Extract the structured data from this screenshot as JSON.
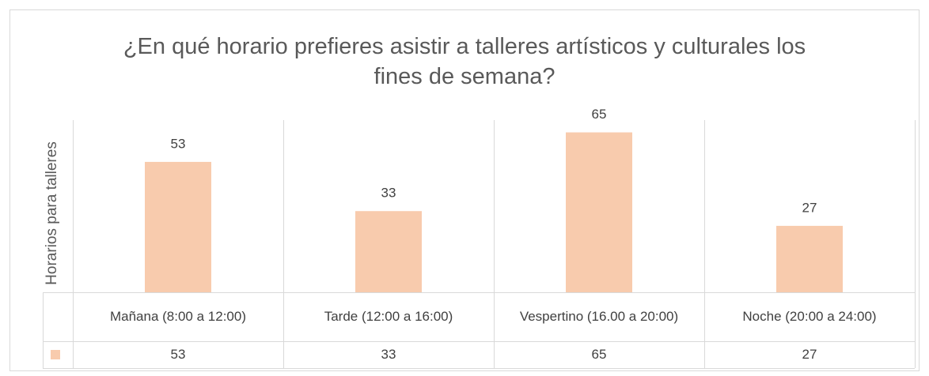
{
  "chart_data": {
    "type": "bar",
    "title": "¿En qué horario prefieres asistir a talleres artísticos y culturales los fines de semana?",
    "y_label": "Horarios para talleres",
    "categories": [
      "Mañana (8:00 a 12:00)",
      "Tarde (12:00 a 16:00)",
      "Vespertino (16.00 a 20:00)",
      "Noche (20:00 a 24:00)"
    ],
    "values": [
      53,
      33,
      65,
      27
    ],
    "color": "#f8cbad",
    "ylim": [
      0,
      70
    ],
    "data_labels": true,
    "data_table": true
  }
}
